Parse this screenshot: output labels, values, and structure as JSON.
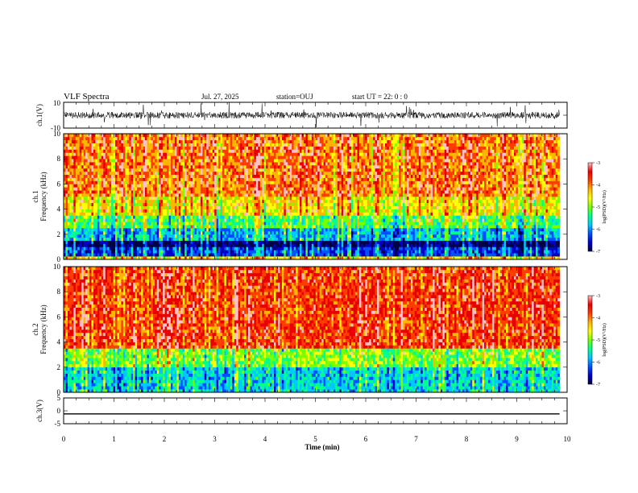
{
  "header": {
    "title": "VLF Spectra",
    "date": "Jul. 27, 2025",
    "station": "station=OUJ",
    "start": "start UT =  22: 0  : 0"
  },
  "colors": {
    "colormap": [
      "#000040",
      "#0000c8",
      "#0050ff",
      "#00c8ff",
      "#00ff8c",
      "#78ff00",
      "#ffff00",
      "#ffb400",
      "#ff3c00",
      "#e80000",
      "#ffc0c8"
    ]
  },
  "chart_data": [
    {
      "type": "line",
      "name": "ch.1 waveform",
      "ylabel": "ch.1(V)",
      "ylim": [
        -10,
        10
      ],
      "ytick_labels": [
        "-10",
        "10"
      ],
      "baseline": 0,
      "noise_band": [
        -2.5,
        2.5
      ],
      "spike_range": [
        -10,
        10
      ],
      "xlim": [
        0,
        10
      ]
    },
    {
      "type": "heatmap",
      "name": "ch.1 spectrogram",
      "ylabel": "ch.1 Frequency (kHz)",
      "ylim": [
        0,
        10
      ],
      "ytick_labels": [
        "0",
        "2",
        "4",
        "6",
        "8",
        "10"
      ],
      "xlim": [
        0,
        10
      ],
      "data_end_min": 9.85,
      "colorbar": {
        "label": "log(PSD)(V²/Hz)",
        "range": [
          -7,
          -3
        ],
        "tick_labels": [
          "-3",
          "-4",
          "-5",
          "-6",
          "-7"
        ]
      },
      "bands_kHz": [
        {
          "from": 0.0,
          "to": 0.3,
          "level": -4.5
        },
        {
          "from": 0.3,
          "to": 1.0,
          "level": -6.2
        },
        {
          "from": 1.0,
          "to": 1.6,
          "level": -6.8
        },
        {
          "from": 1.6,
          "to": 2.5,
          "level": -5.8
        },
        {
          "from": 2.5,
          "to": 3.5,
          "level": -5.2
        },
        {
          "from": 3.5,
          "to": 5.0,
          "level": -4.6
        },
        {
          "from": 5.0,
          "to": 10.0,
          "level": -4.1
        }
      ]
    },
    {
      "type": "heatmap",
      "name": "ch.2 spectrogram",
      "ylabel": "ch.2 Frequency (kHz)",
      "ylim": [
        0,
        10
      ],
      "ytick_labels": [
        "0",
        "2",
        "4",
        "6",
        "8",
        "10"
      ],
      "xlim": [
        0,
        10
      ],
      "data_end_min": 9.85,
      "colorbar": {
        "label": "log(PSD)(V²/Hz)",
        "range": [
          -7,
          -3
        ],
        "tick_labels": [
          "-3",
          "-4",
          "-5",
          "-6",
          "-7"
        ]
      },
      "bands_kHz": [
        {
          "from": 0.0,
          "to": 2.0,
          "level": -5.6
        },
        {
          "from": 2.0,
          "to": 3.6,
          "level": -5.0
        },
        {
          "from": 3.6,
          "to": 10.0,
          "level": -3.8
        }
      ]
    },
    {
      "type": "line",
      "name": "ch.3 waveform",
      "ylabel": "ch.3(V)",
      "ylim": [
        -5,
        5
      ],
      "ytick_labels": [
        "-5",
        "0",
        "5"
      ],
      "constant_value": -1.2,
      "xlim": [
        0,
        10
      ],
      "xlabel": "Time (min)",
      "xtick_labels": [
        "0",
        "1",
        "2",
        "3",
        "4",
        "5",
        "6",
        "7",
        "8",
        "9",
        "10"
      ]
    }
  ]
}
